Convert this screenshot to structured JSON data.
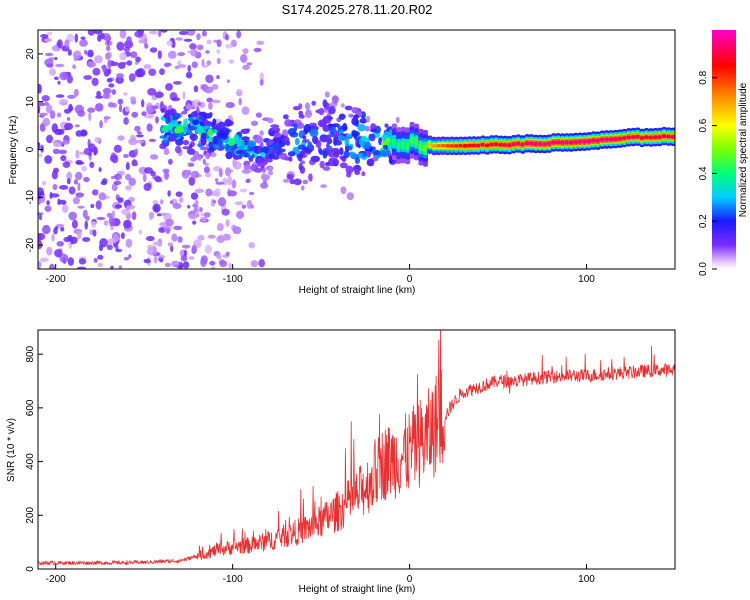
{
  "title": "S174.2025.278.11.20.R02",
  "chart_data": [
    {
      "type": "heatmap",
      "name": "spectrogram",
      "xlabel": "Height of straight line (km)",
      "ylabel": "Frequency (Hz)",
      "xlim": [
        -210,
        150
      ],
      "ylim": [
        -25,
        25
      ],
      "xticks": [
        -200,
        -100,
        0,
        100
      ],
      "yticks": [
        -20,
        -10,
        0,
        10,
        20
      ],
      "colorbar": {
        "label": "Normalized spectral amplitude",
        "range": [
          0.0,
          1.0
        ],
        "ticks": [
          0.0,
          0.2,
          0.4,
          0.6,
          0.8
        ]
      },
      "carrier_ridge": [
        {
          "x": -135,
          "y": 4.5,
          "amp": 0.5
        },
        {
          "x": -120,
          "y": 4.0,
          "amp": 0.5
        },
        {
          "x": -105,
          "y": 2.5,
          "amp": 0.45
        },
        {
          "x": -95,
          "y": 0.5,
          "amp": 0.4
        },
        {
          "x": -85,
          "y": -1.5,
          "amp": 0.35
        },
        {
          "x": -75,
          "y": 1.5,
          "amp": 0.3
        },
        {
          "x": -65,
          "y": 1.0,
          "amp": 0.3
        },
        {
          "x": -50,
          "y": 3.0,
          "amp": 0.3
        },
        {
          "x": -35,
          "y": 2.0,
          "amp": 0.3
        },
        {
          "x": -25,
          "y": 1.0,
          "amp": 0.4
        },
        {
          "x": -15,
          "y": 1.5,
          "amp": 0.5
        },
        {
          "x": -5,
          "y": 1.5,
          "amp": 0.55
        },
        {
          "x": 5,
          "y": 1.0,
          "amp": 0.6
        },
        {
          "x": 15,
          "y": 0.8,
          "amp": 0.75
        },
        {
          "x": 30,
          "y": 0.8,
          "amp": 0.85
        },
        {
          "x": 50,
          "y": 1.0,
          "amp": 0.9
        },
        {
          "x": 70,
          "y": 1.2,
          "amp": 0.95
        },
        {
          "x": 90,
          "y": 1.5,
          "amp": 0.95
        },
        {
          "x": 110,
          "y": 2.0,
          "amp": 0.95
        },
        {
          "x": 125,
          "y": 2.5,
          "amp": 0.9
        },
        {
          "x": 150,
          "y": 2.8,
          "amp": 0.9
        }
      ]
    },
    {
      "type": "line",
      "name": "snr",
      "xlabel": "Height of straight line (km)",
      "ylabel": "SNR (10 * v/v)",
      "xlim": [
        -210,
        150
      ],
      "ylim": [
        0,
        890
      ],
      "xticks": [
        -200,
        -100,
        0,
        100
      ],
      "yticks": [
        0,
        200,
        400,
        600,
        800
      ],
      "color": "#e83030",
      "series": [
        {
          "name": "SNR",
          "x": [
            -210,
            -190,
            -170,
            -150,
            -130,
            -120,
            -110,
            -100,
            -90,
            -80,
            -70,
            -60,
            -50,
            -40,
            -30,
            -20,
            -15,
            -10,
            -5,
            0,
            5,
            10,
            15,
            20,
            25,
            30,
            40,
            50,
            60,
            70,
            80,
            90,
            100,
            110,
            120,
            130,
            140,
            150
          ],
          "y": [
            20,
            20,
            20,
            22,
            28,
            45,
            65,
            80,
            85,
            100,
            120,
            140,
            170,
            210,
            260,
            330,
            380,
            390,
            400,
            420,
            450,
            470,
            520,
            570,
            620,
            660,
            680,
            700,
            700,
            710,
            715,
            720,
            720,
            725,
            730,
            735,
            740,
            740
          ]
        }
      ]
    }
  ]
}
